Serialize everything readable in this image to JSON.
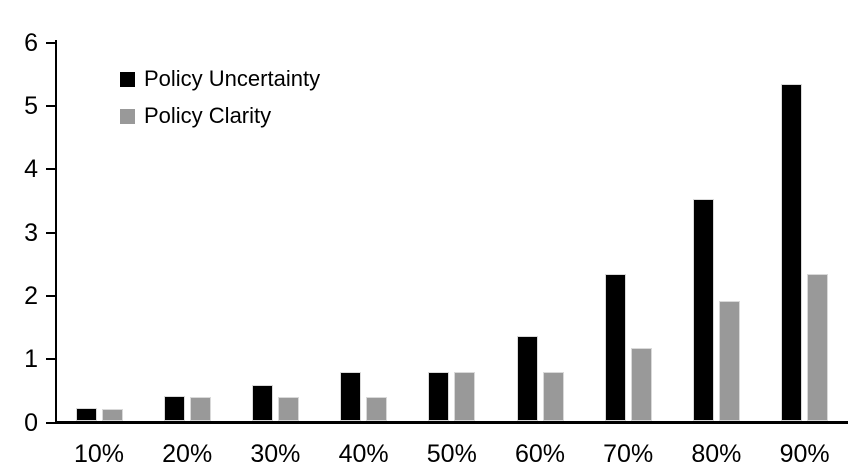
{
  "chart_data": {
    "type": "bar",
    "title": "",
    "xlabel": "",
    "ylabel": "",
    "categories": [
      "10%",
      "20%",
      "30%",
      "40%",
      "50%",
      "60%",
      "70%",
      "80%",
      "90%"
    ],
    "series": [
      {
        "name": "Policy Uncertainty",
        "color": "#000000",
        "values": [
          0.2,
          0.4,
          0.57,
          0.77,
          0.78,
          1.34,
          2.32,
          3.51,
          5.33
        ]
      },
      {
        "name": "Policy Clarity",
        "color": "#999999",
        "values": [
          0.19,
          0.38,
          0.38,
          0.38,
          0.77,
          0.78,
          1.15,
          1.9,
          2.32
        ]
      }
    ],
    "ylim": [
      0,
      6
    ],
    "yticks": [
      0,
      1,
      2,
      3,
      4,
      5,
      6
    ],
    "grid": false,
    "legend_position": "top-left",
    "axis_color": "#000000",
    "background_color": "#ffffff"
  }
}
